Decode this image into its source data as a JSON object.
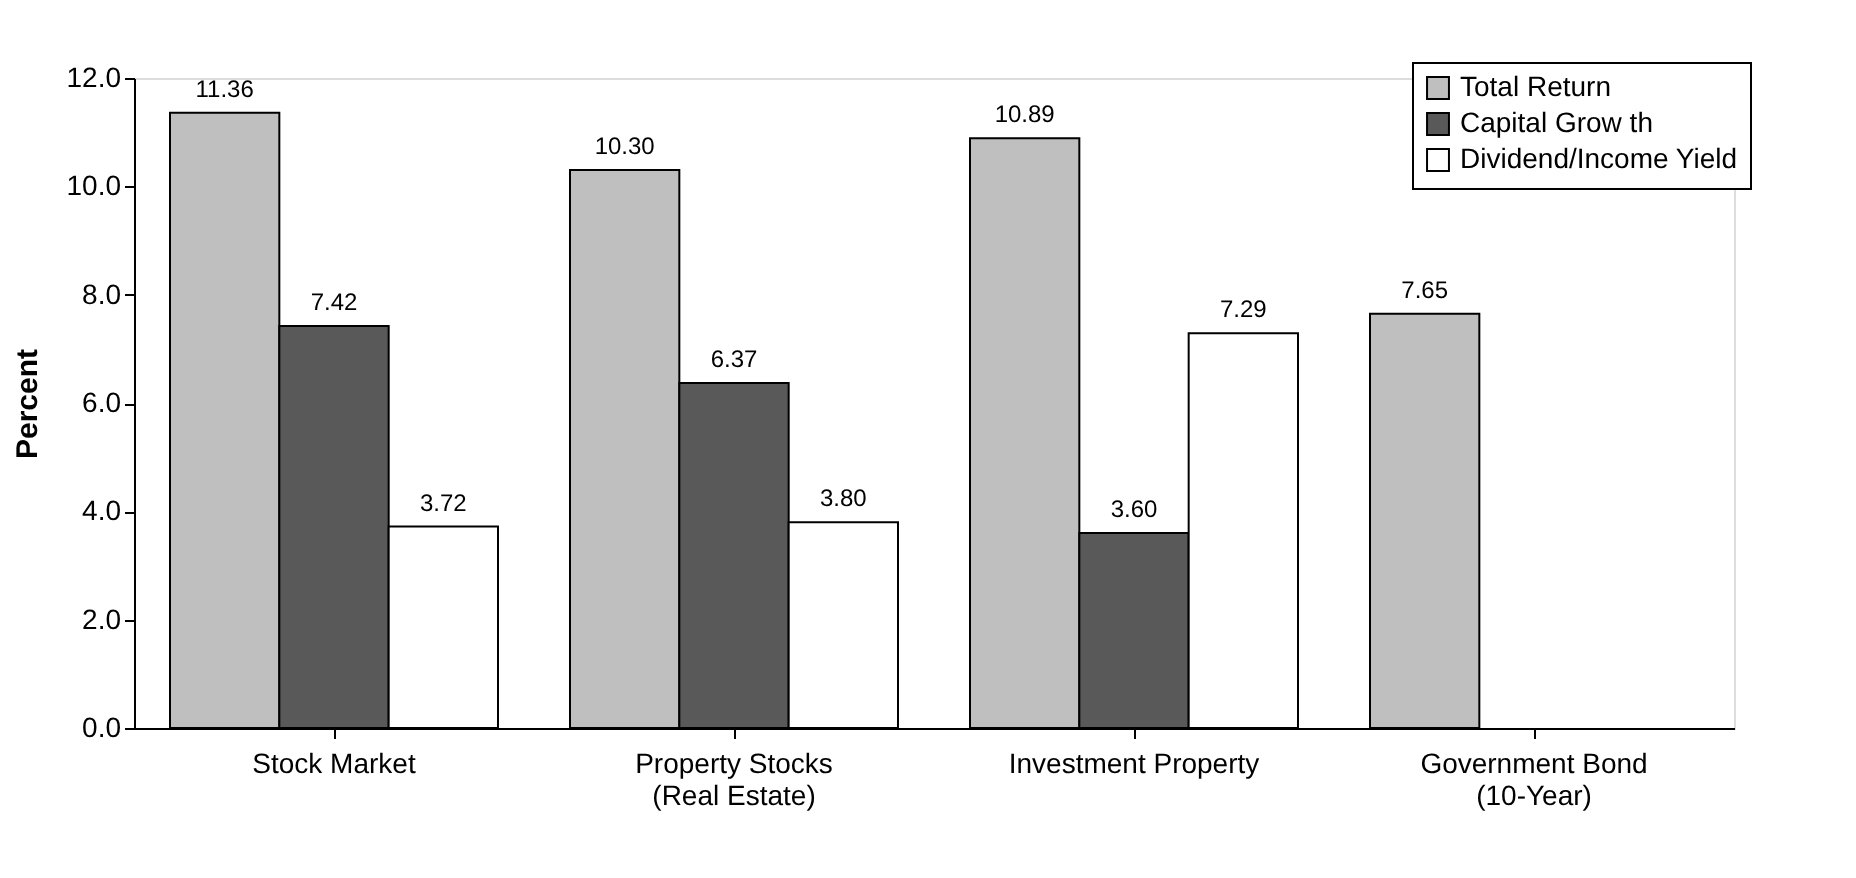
{
  "chart_data": {
    "type": "bar",
    "ylabel": "Percent",
    "categories": [
      "Stock Market",
      "Property Stocks\n(Real Estate)",
      "Investment Property",
      "Government Bond\n(10-Year)"
    ],
    "series": [
      {
        "name": "Total Return",
        "color": "#bfbfbf",
        "values": [
          11.36,
          10.3,
          10.89,
          7.65
        ],
        "value_labels": [
          "11.36",
          "10.30",
          "10.89",
          "7.65"
        ]
      },
      {
        "name": "Capital Grow th",
        "color": "#595959",
        "values": [
          7.42,
          6.37,
          3.6,
          null
        ],
        "value_labels": [
          "7.42",
          "6.37",
          "3.60",
          null
        ]
      },
      {
        "name": "Dividend/Income Yield",
        "color": "#ffffff",
        "values": [
          3.72,
          3.8,
          7.29,
          null
        ],
        "value_labels": [
          "3.72",
          "3.80",
          "7.29",
          null
        ]
      }
    ],
    "ylim": [
      0,
      12
    ],
    "yticks": [
      {
        "value": 0,
        "label": "0.0"
      },
      {
        "value": 2,
        "label": "2.0"
      },
      {
        "value": 4,
        "label": "4.0"
      },
      {
        "value": 6,
        "label": "6.0"
      },
      {
        "value": 8,
        "label": "8.0"
      },
      {
        "value": 10,
        "label": "10.0"
      },
      {
        "value": 12,
        "label": "12.0"
      }
    ],
    "grid": false,
    "legend": "top right"
  }
}
